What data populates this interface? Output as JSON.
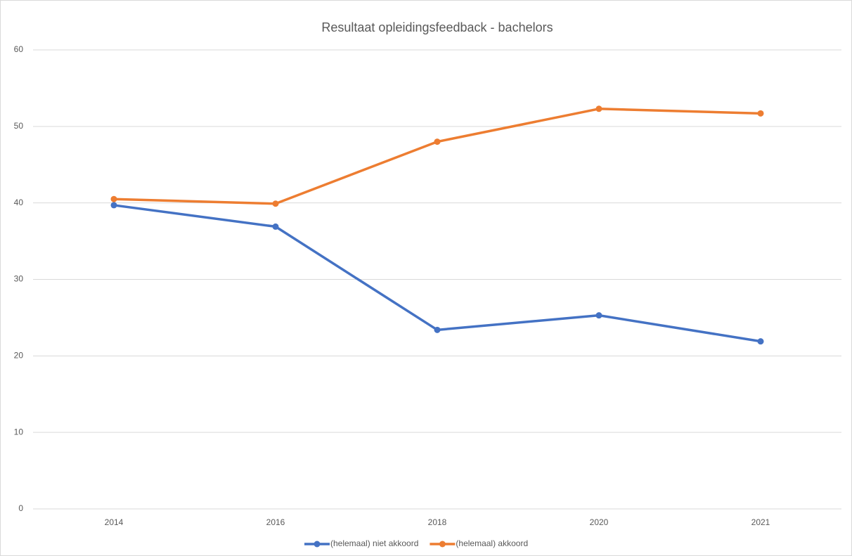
{
  "chart_data": {
    "type": "line",
    "title": "Resultaat opleidingsfeedback - bachelors",
    "categories": [
      "2014",
      "2016",
      "2018",
      "2020",
      "2021"
    ],
    "series": [
      {
        "name": "(helemaal) niet akkoord",
        "color": "#4472c4",
        "values": [
          39.7,
          36.9,
          23.4,
          25.3,
          21.9
        ]
      },
      {
        "name": "(helemaal) akkoord",
        "color": "#ed7d31",
        "values": [
          40.5,
          39.9,
          48.0,
          52.3,
          51.7
        ]
      }
    ],
    "ylim": [
      0,
      60
    ],
    "yticks": [
      0,
      10,
      20,
      30,
      40,
      50,
      60
    ],
    "grid": true,
    "legend": "bottom"
  }
}
